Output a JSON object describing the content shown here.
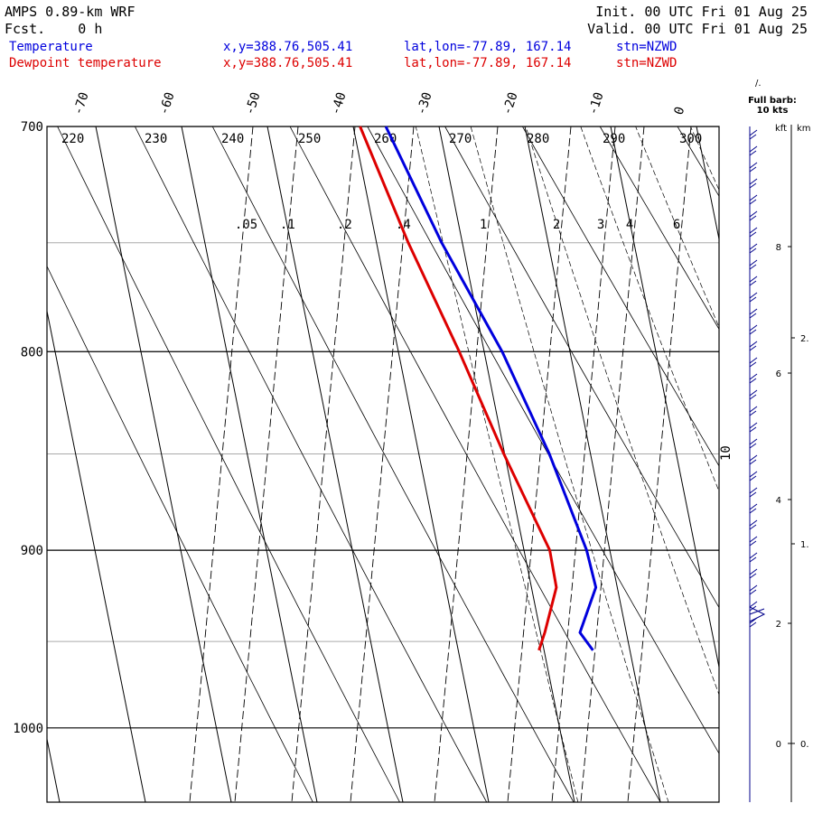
{
  "header": {
    "model": "AMPS 0.89-km WRF",
    "fcst": "Fcst.    0 h",
    "init": "Init. 00 UTC Fri 01 Aug 25",
    "valid": "Valid. 00 UTC Fri 01 Aug 25"
  },
  "legend": {
    "temp_label": "Temperature",
    "dew_label": "Dewpoint temperature",
    "xy": "x,y=388.76,505.41",
    "latlon": "lat,lon=-77.89, 167.14",
    "stn": "stn=NZWD",
    "temp_color": "#0000dd",
    "dew_color": "#dd0000"
  },
  "wind_panel": {
    "full_barb_label": "Full barb:",
    "full_barb_value": "10 kts",
    "kft_label": "kft",
    "km_label": "km",
    "kft_ticks": [
      "8",
      "6",
      "4",
      "2",
      "0"
    ],
    "km_ticks": [
      "2.",
      "1.",
      "0."
    ],
    "side_label": "10",
    "top_symbol": "/."
  },
  "chart_data": {
    "type": "line",
    "title": "",
    "ylabel": "",
    "xlabel": "",
    "pressure_levels": [
      700,
      800,
      900,
      1000
    ],
    "pressure_gridlines": [
      750,
      850,
      950
    ],
    "ylim": [
      700,
      1045
    ],
    "skewed_temp_ticks": [
      "-70",
      "-60",
      "-50",
      "-40",
      "-30",
      "-20",
      "-10",
      "0"
    ],
    "potential_temp_labels": [
      "220",
      "230",
      "240",
      "250",
      "260",
      "270",
      "280",
      "290",
      "300"
    ],
    "mixing_ratio_labels": [
      ".05",
      ".1",
      ".2",
      ".4",
      "1",
      "2",
      "3",
      "4",
      "6"
    ],
    "series": [
      {
        "name": "Temperature",
        "color": "#0000dd",
        "pressure": [
          700,
          750,
          800,
          850,
          900,
          920,
          945,
          955
        ],
        "temp_c": [
          -36.2,
          -32.4,
          -27.9,
          -24.8,
          -22.7,
          -22.5,
          -25.4,
          -24.3
        ]
      },
      {
        "name": "Dewpoint temperature",
        "color": "#dd0000",
        "pressure": [
          700,
          750,
          800,
          850,
          900,
          920,
          945,
          955
        ],
        "temp_c": [
          -39.2,
          -36.3,
          -32.9,
          -30.1,
          -27.0,
          -27.1,
          -29.5,
          -30.6
        ]
      }
    ]
  }
}
